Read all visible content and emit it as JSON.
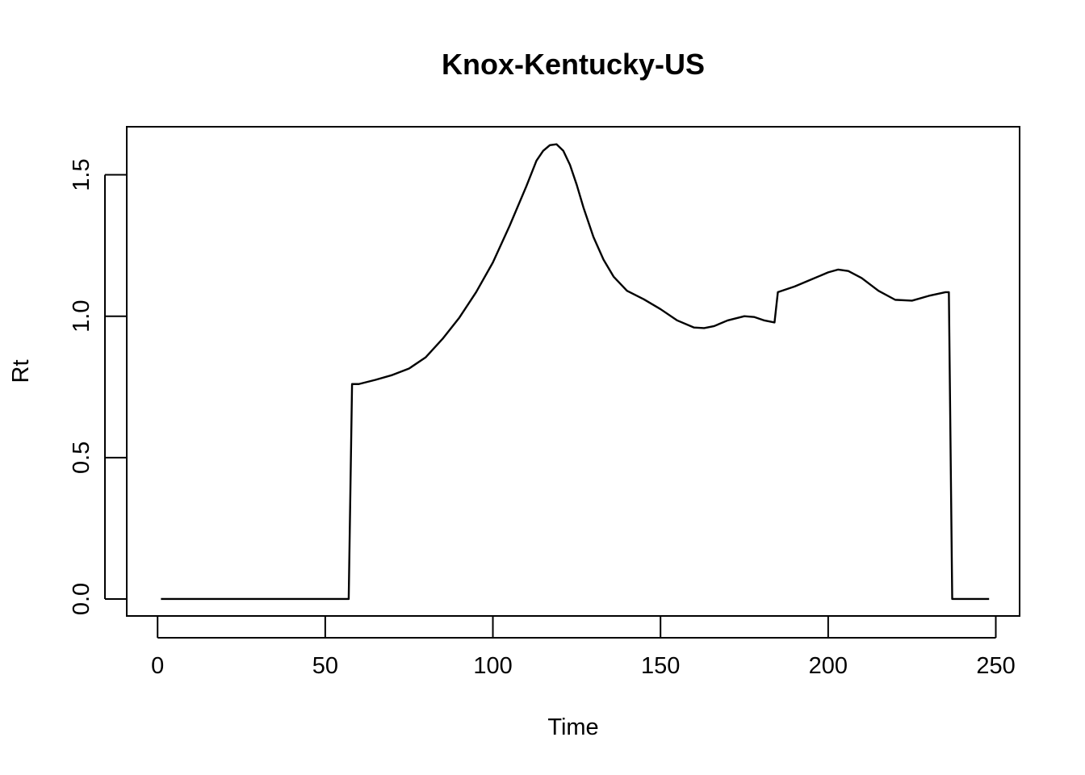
{
  "chart_data": {
    "type": "line",
    "title": "Knox-Kentucky-US",
    "xlabel": "Time",
    "ylabel": "Rt",
    "xlim": [
      -9.2,
      257.1
    ],
    "ylim": [
      -0.06,
      1.67
    ],
    "xticks": [
      0,
      50,
      100,
      150,
      200,
      250
    ],
    "xtick_labels": [
      "0",
      "50",
      "100",
      "150",
      "200",
      "250"
    ],
    "yticks": [
      0.0,
      0.5,
      1.0,
      1.5
    ],
    "ytick_labels": [
      "0.0",
      "0.5",
      "1.0",
      "1.5"
    ],
    "grid": false,
    "legend": "none",
    "line_color": "#000000",
    "series": [
      {
        "x": [
          1,
          10,
          20,
          30,
          40,
          50,
          57,
          58,
          60,
          65,
          70,
          75,
          80,
          85,
          90,
          95,
          100,
          105,
          110,
          113,
          115,
          117,
          119,
          121,
          123,
          125,
          127,
          130,
          133,
          136,
          140,
          145,
          150,
          155,
          160,
          163,
          166,
          170,
          175,
          178,
          181,
          184,
          185,
          190,
          195,
          200,
          203,
          206,
          210,
          215,
          220,
          225,
          230,
          235,
          236,
          237,
          240,
          248
        ],
        "y": [
          0.0,
          0.0,
          0.0,
          0.0,
          0.0,
          0.0,
          0.0,
          0.76,
          0.76,
          0.775,
          0.792,
          0.815,
          0.855,
          0.92,
          0.995,
          1.085,
          1.19,
          1.32,
          1.46,
          1.55,
          1.585,
          1.605,
          1.608,
          1.585,
          1.535,
          1.465,
          1.385,
          1.28,
          1.2,
          1.14,
          1.09,
          1.06,
          1.025,
          0.985,
          0.96,
          0.958,
          0.965,
          0.985,
          1.0,
          0.997,
          0.985,
          0.978,
          1.085,
          1.105,
          1.13,
          1.155,
          1.165,
          1.16,
          1.135,
          1.09,
          1.058,
          1.055,
          1.072,
          1.085,
          1.085,
          0.0,
          0.0,
          0.0
        ]
      }
    ]
  }
}
